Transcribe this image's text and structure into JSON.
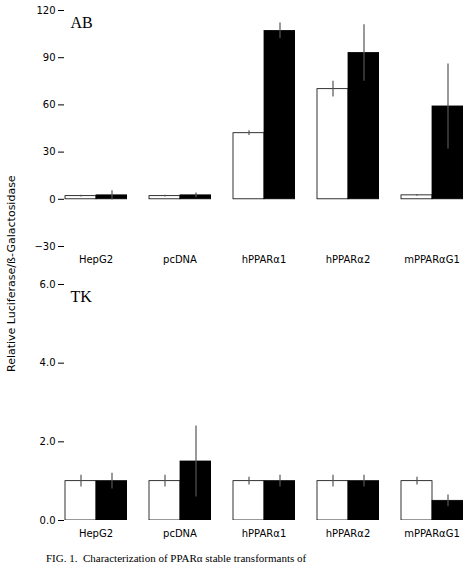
{
  "chart_data": [
    {
      "type": "bar",
      "ylabel": "Relative Luciferase/ß-Galactosidase",
      "annotation": "AB",
      "categories": [
        "HepG2",
        "pcDNA",
        "hPPARα1",
        "hPPARα2",
        "mPPARαG1"
      ],
      "series": [
        {
          "color": "#ffffff",
          "values": [
            2.0,
            2.0,
            42.0,
            70.0,
            2.5
          ],
          "errors": [
            0.5,
            0.5,
            1.5,
            5.0,
            0.5
          ]
        },
        {
          "color": "#000000",
          "values": [
            2.5,
            2.5,
            107.0,
            93.0,
            59.0
          ],
          "errors": [
            3.0,
            1.5,
            5.0,
            18.0,
            27.0
          ]
        }
      ],
      "ylim": [
        -30,
        120
      ],
      "yticks": [
        -30,
        0,
        30,
        60,
        90,
        120
      ],
      "grid": false
    },
    {
      "type": "bar",
      "annotation": "TK",
      "categories": [
        "HepG2",
        "pcDNA",
        "hPPARα1",
        "hPPARα2",
        "mPPARαG1"
      ],
      "series": [
        {
          "color": "#ffffff",
          "values": [
            1.0,
            1.0,
            1.0,
            1.0,
            1.0
          ],
          "errors": [
            0.15,
            0.15,
            0.1,
            0.15,
            0.1
          ]
        },
        {
          "color": "#000000",
          "values": [
            1.0,
            1.5,
            1.0,
            1.0,
            0.5
          ],
          "errors": [
            0.2,
            0.9,
            0.15,
            0.15,
            0.15
          ]
        }
      ],
      "ylim": [
        0,
        6
      ],
      "yticks": [
        0,
        2,
        4,
        6
      ],
      "grid": false,
      "caption": "FIG. 1.  Characterization of PPARα stable transformants of"
    }
  ]
}
